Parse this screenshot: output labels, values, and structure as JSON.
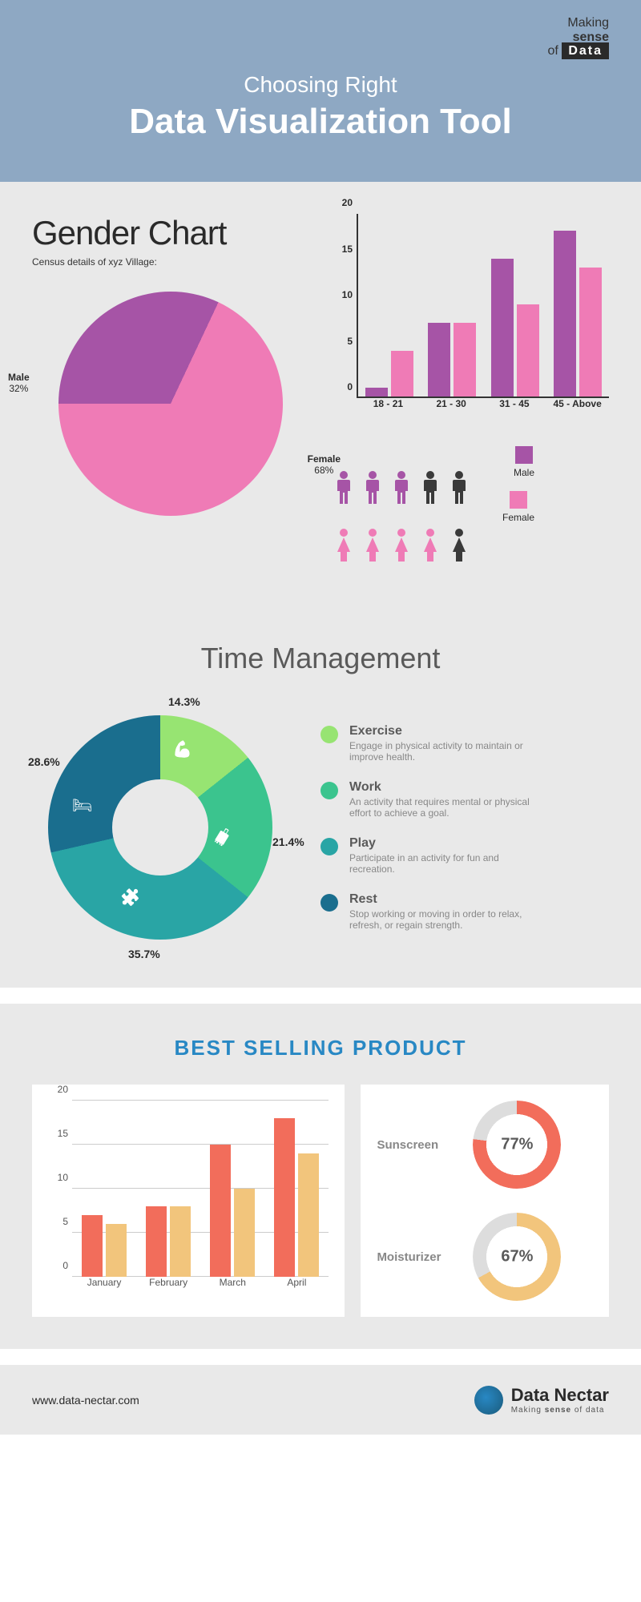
{
  "logo": {
    "making": "Making",
    "sense": "sense",
    "of": "of",
    "data": "Data"
  },
  "header": {
    "subtitle": "Choosing Right",
    "title": "Data Visualization Tool"
  },
  "gender": {
    "title": "Gender Chart",
    "subtitle": "Census details of xyz Village:",
    "pie": {
      "slices": [
        {
          "label": "Male",
          "pct": 32,
          "color": "#a654a6",
          "text": "Male\n32%"
        },
        {
          "label": "Female",
          "pct": 68,
          "color": "#ef7bb6",
          "text": "Female\n68%"
        }
      ]
    },
    "bar": {
      "type": "bar",
      "ylim": [
        0,
        20
      ],
      "yticks": [
        0,
        5,
        10,
        15,
        20
      ],
      "categories": [
        "18 - 21",
        "21 - 30",
        "31 - 45",
        "45 - Above"
      ],
      "series": [
        {
          "name": "Male",
          "color": "#a654a6",
          "values": [
            1,
            8,
            15,
            18
          ]
        },
        {
          "name": "Female",
          "color": "#ef7bb6",
          "values": [
            5,
            8,
            10,
            14
          ]
        }
      ]
    },
    "people": {
      "male_row": {
        "color": "#a654a6",
        "dark": "#3a3a3a",
        "colored": 3,
        "total": 5
      },
      "female_row": {
        "color": "#ef7bb6",
        "dark": "#3a3a3a",
        "colored": 4,
        "total": 5
      },
      "legend": [
        {
          "label": "Male",
          "color": "#a654a6"
        },
        {
          "label": "Female",
          "color": "#ef7bb6"
        }
      ]
    }
  },
  "time": {
    "title": "Time Management",
    "donut": {
      "type": "donut",
      "slices": [
        {
          "key": "Exercise",
          "pct": 14.3,
          "label": "14.3%",
          "color": "#97e472"
        },
        {
          "key": "Work",
          "pct": 21.4,
          "label": "21.4%",
          "color": "#3bc48e"
        },
        {
          "key": "Play",
          "pct": 35.7,
          "label": "35.7%",
          "color": "#29a5a5"
        },
        {
          "key": "Rest",
          "pct": 28.6,
          "label": "28.6%",
          "color": "#1a6e8e"
        }
      ]
    },
    "legend": [
      {
        "title": "Exercise",
        "desc": "Engage in physical activity to maintain or improve health.",
        "color": "#97e472"
      },
      {
        "title": "Work",
        "desc": "An activity that requires mental or physical effort to achieve a goal.",
        "color": "#3bc48e"
      },
      {
        "title": "Play",
        "desc": "Participate in an activity for fun and recreation.",
        "color": "#29a5a5"
      },
      {
        "title": "Rest",
        "desc": "Stop working or moving in order to relax, refresh, or regain strength.",
        "color": "#1a6e8e"
      }
    ]
  },
  "best": {
    "title": "BEST SELLING PRODUCT",
    "bar": {
      "type": "bar",
      "ylim": [
        0,
        20
      ],
      "yticks": [
        0,
        5,
        10,
        15,
        20
      ],
      "categories": [
        "January",
        "February",
        "March",
        "April"
      ],
      "grid_color": "#cccccc",
      "series": [
        {
          "name": "Sunscreen",
          "color": "#f26d5b",
          "values": [
            7,
            8,
            15,
            18
          ]
        },
        {
          "name": "Moisturizer",
          "color": "#f2c57c",
          "values": [
            6,
            8,
            10,
            14
          ]
        }
      ]
    },
    "rings": [
      {
        "name": "Sunscreen",
        "pct": 77,
        "label": "77%",
        "color": "#f26d5b",
        "track": "#dddddd"
      },
      {
        "name": "Moisturizer",
        "pct": 67,
        "label": "67%",
        "color": "#f2c57c",
        "track": "#dddddd"
      }
    ]
  },
  "footer": {
    "url": "www.data-nectar.com",
    "brand": "Data Nectar",
    "tagline": "Making sense of data"
  },
  "colors": {
    "header_bg": "#8ea8c3",
    "section_bg": "#e9e9e9",
    "text_dark": "#2a2a2a",
    "text_muted": "#888888",
    "accent_blue": "#2888c4"
  }
}
